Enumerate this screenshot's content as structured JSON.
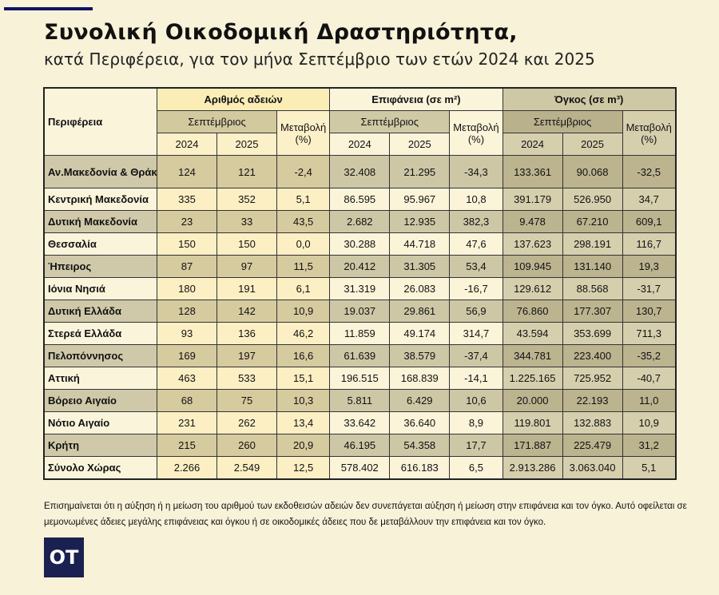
{
  "title": "Συνολική Οικοδομική Δραστηριότητα,",
  "subtitle": "κατά  Περιφέρεια, για τον μήνα Σεπτέμβριο των ετών 2024 και 2025",
  "table": {
    "region_header": "Περιφέρεια",
    "groups": [
      {
        "label": "Αριθμός αδειών",
        "month": "Σεπτέμβριος",
        "change": "Μεταβολή",
        "change_unit": "(%)",
        "y1": "2024",
        "y2": "2025"
      },
      {
        "label": "Επιφάνεια (σε m²)",
        "month": "Σεπτέμβριος",
        "change": "Μεταβολή",
        "change_unit": "(%)",
        "y1": "2024",
        "y2": "2025"
      },
      {
        "label": "Όγκος (σε m³)",
        "month": "Σεπτέμβριος",
        "change": "Μεταβολή",
        "change_unit": "(%)",
        "y1": "2024",
        "y2": "2025"
      }
    ],
    "rows": [
      [
        "Αν.Μακεδονία & Θράκη",
        "124",
        "121",
        "-2,4",
        "32.408",
        "21.295",
        "-34,3",
        "133.361",
        "90.068",
        "-32,5"
      ],
      [
        "Κεντρική Μακεδονία",
        "335",
        "352",
        "5,1",
        "86.595",
        "95.967",
        "10,8",
        "391.179",
        "526.950",
        "34,7"
      ],
      [
        "Δυτική Μακεδονία",
        "23",
        "33",
        "43,5",
        "2.682",
        "12.935",
        "382,3",
        "9.478",
        "67.210",
        "609,1"
      ],
      [
        "Θεσσαλία",
        "150",
        "150",
        "0,0",
        "30.288",
        "44.718",
        "47,6",
        "137.623",
        "298.191",
        "116,7"
      ],
      [
        "Ήπειρος",
        "87",
        "97",
        "11,5",
        "20.412",
        "31.305",
        "53,4",
        "109.945",
        "131.140",
        "19,3"
      ],
      [
        "Ιόνια Νησιά",
        "180",
        "191",
        "6,1",
        "31.319",
        "26.083",
        "-16,7",
        "129.612",
        "88.568",
        "-31,7"
      ],
      [
        "Δυτική Ελλάδα",
        "128",
        "142",
        "10,9",
        "19.037",
        "29.861",
        "56,9",
        "76.860",
        "177.307",
        "130,7"
      ],
      [
        "Στερεά Ελλάδα",
        "93",
        "136",
        "46,2",
        "11.859",
        "49.174",
        "314,7",
        "43.594",
        "353.699",
        "711,3"
      ],
      [
        "Πελοπόννησος",
        "169",
        "197",
        "16,6",
        "61.639",
        "38.579",
        "-37,4",
        "344.781",
        "223.400",
        "-35,2"
      ],
      [
        "Αττική",
        "463",
        "533",
        "15,1",
        "196.515",
        "168.839",
        "-14,1",
        "1.225.165",
        "725.952",
        "-40,7"
      ],
      [
        "Βόρειο Αιγαίο",
        "68",
        "75",
        "10,3",
        "5.811",
        "6.429",
        "10,6",
        "20.000",
        "22.193",
        "11,0"
      ],
      [
        "Νότιο Αιγαίο",
        "231",
        "262",
        "13,4",
        "33.642",
        "36.640",
        "8,9",
        "119.801",
        "132.883",
        "10,9"
      ],
      [
        "Κρήτη",
        "215",
        "260",
        "20,9",
        "46.195",
        "54.358",
        "17,7",
        "171.887",
        "225.479",
        "31,2"
      ],
      [
        "Σύνολο Χώρας",
        "2.266",
        "2.549",
        "12,5",
        "578.402",
        "616.183",
        "6,5",
        "2.913.286",
        "3.063.040",
        "5,1"
      ]
    ]
  },
  "note": "Επισημαίνεται ότι η αύξηση ή η μείωση του αριθμού των εκδοθεισών αδειών δεν συνεπάγεται αύξηση ή μείωση στην επιφάνεια και τον όγκο. Αυτό οφείλεται σε μεμονωμένες άδειες μεγάλης επιφάνειας και όγκου ή σε οικοδομικές άδειες που δε μεταβάλλουν την επιφάνεια και τον όγκο.",
  "logo": "OT",
  "colors": {
    "accent": "#0d1266",
    "logo_bg": "#1a2150",
    "background": "#f7f2d8"
  }
}
